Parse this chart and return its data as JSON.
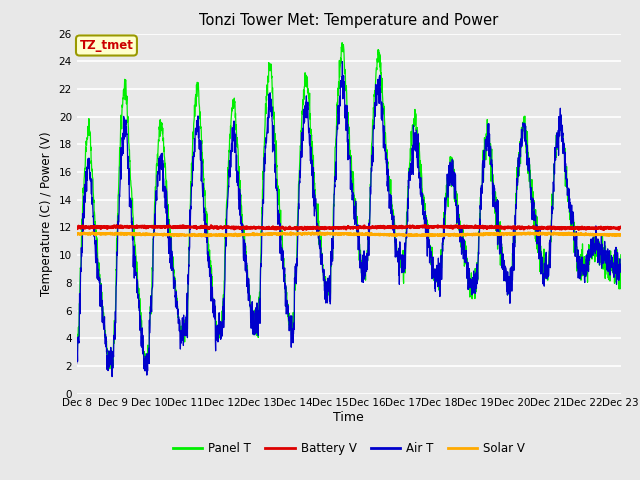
{
  "title": "Tonzi Tower Met: Temperature and Power",
  "xlabel": "Time",
  "ylabel": "Temperature (C) / Power (V)",
  "ylim": [
    0,
    26
  ],
  "yticks": [
    0,
    2,
    4,
    6,
    8,
    10,
    12,
    14,
    16,
    18,
    20,
    22,
    24,
    26
  ],
  "n_days": 15,
  "x_tick_labels": [
    "Dec 8",
    "Dec 9",
    "Dec 10",
    "Dec 11",
    "Dec 12",
    "Dec 13",
    "Dec 14",
    "Dec 15",
    "Dec 16",
    "Dec 17",
    "Dec 18",
    "Dec 19",
    "Dec 20",
    "Dec 21",
    "Dec 22",
    "Dec 23"
  ],
  "panel_color": "#00ee00",
  "battery_color": "#dd0000",
  "air_color": "#0000cc",
  "solar_color": "#ffaa00",
  "fig_bg_color": "#e8e8e8",
  "plot_bg_color": "#e8e8e8",
  "grid_color": "#ffffff",
  "annotation_text": "TZ_tmet",
  "annotation_color": "#cc0000",
  "annotation_bg": "#ffffcc",
  "annotation_edge": "#999900",
  "legend_labels": [
    "Panel T",
    "Battery V",
    "Air T",
    "Solar V"
  ],
  "battery_level": 12.0,
  "solar_level": 11.5,
  "pts_per_day": 144
}
